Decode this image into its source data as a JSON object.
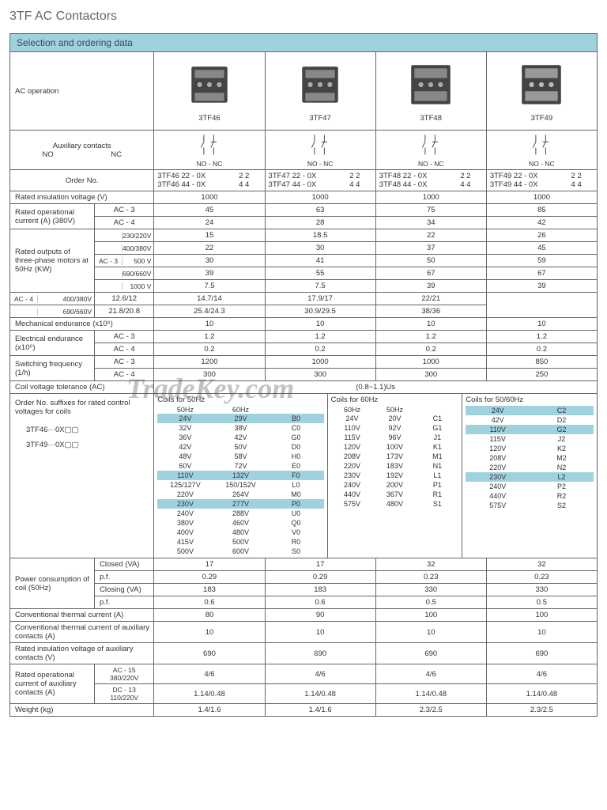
{
  "title": "3TF AC Contactors",
  "sectionHeader": "Selection and ordering data",
  "watermark": "TradeKey.com",
  "colors": {
    "accent": "#9fd2df",
    "border": "#666"
  },
  "products": [
    "3TF46",
    "3TF47",
    "3TF48",
    "3TF49"
  ],
  "rows": {
    "acOp": "AC operation",
    "auxContacts": "Auxiliary contacts",
    "aux_NO": "NO",
    "aux_NC": "NC",
    "nonc": "NO - NC",
    "orderNo": "Order No.",
    "orders": [
      [
        "3TF46 22 - 0X",
        "3TF46 44 - 0X",
        "2  2",
        "4  4"
      ],
      [
        "3TF47 22 - 0X",
        "3TF47 44 - 0X",
        "2  2",
        "4  4"
      ],
      [
        "3TF48 22 - 0X",
        "3TF48 44 - 0X",
        "2  2",
        "4  4"
      ],
      [
        "3TF49 22 - 0X",
        "3TF49 44 - 0X",
        "2  2",
        "4  4"
      ]
    ],
    "insV": "Rated insulation voltage (V)",
    "insV_vals": [
      "1000",
      "1000",
      "1000",
      "1000"
    ],
    "opCur": "Rated operational current (A) (380V)",
    "opCur_AC3": [
      "45",
      "63",
      "75",
      "85"
    ],
    "opCur_AC4": [
      "24",
      "28",
      "34",
      "42"
    ],
    "ratedOut": "Rated outputs of three-phase motors at 50Hz (KW)",
    "ro_volts_ac3": [
      "230/220V",
      "400/380V",
      "500    V",
      "690/660V",
      "1000   V"
    ],
    "ro_ac3": [
      [
        "15",
        "18.5",
        "22",
        "26"
      ],
      [
        "22",
        "30",
        "37",
        "45"
      ],
      [
        "30",
        "41",
        "50",
        "59"
      ],
      [
        "39",
        "55",
        "67",
        "67"
      ],
      [
        "7.5",
        "7.5",
        "39",
        "39"
      ]
    ],
    "ro_volts_ac4": [
      "400/380V",
      "690/660V"
    ],
    "ro_ac4": [
      [
        "12.6/12",
        "14.7/14",
        "17.9/17",
        "22/21"
      ],
      [
        "21.8/20.8",
        "25.4/24.3",
        "30.9/29.5",
        "38/36"
      ]
    ],
    "mechEnd": "Mechanical endurance (x10⁶)",
    "mechEnd_vals": [
      "10",
      "10",
      "10",
      "10"
    ],
    "elecEnd": "Electrical endurance (x10⁶)",
    "elecEnd_AC3": [
      "1.2",
      "1.2",
      "1.2",
      "1.2"
    ],
    "elecEnd_AC4": [
      "0.2",
      "0.2",
      "0.2",
      "0.2"
    ],
    "swFreq": "Switching frequency (1/h)",
    "swFreq_AC3": [
      "1200",
      "1000",
      "1000",
      "850"
    ],
    "swFreq_AC4": [
      "300",
      "300",
      "300",
      "250"
    ],
    "coilTol": "Coil voltage tolerance (AC)",
    "coilTol_val": "(0.8~1.1)Us",
    "coilSuffix": "Order No. suffixes for rated control voltages for coils",
    "coilSuffix_eg1": "3TF46···0X▢▢",
    "coilSuffix_eg2": "3TF49···0X▢▢",
    "coils50_title": "Coils for 50Hz",
    "coils50_sub": [
      "50Hz",
      "60Hz",
      ""
    ],
    "coils50": [
      [
        "24V",
        "29V",
        "B0",
        true
      ],
      [
        "32V",
        "38V",
        "C0",
        false
      ],
      [
        "36V",
        "42V",
        "G0",
        false
      ],
      [
        "42V",
        "50V",
        "D0",
        false
      ],
      [
        "48V",
        "58V",
        "H0",
        false
      ],
      [
        "60V",
        "72V",
        "E0",
        false
      ],
      [
        "110V",
        "132V",
        "F0",
        true
      ],
      [
        "125/127V",
        "150/152V",
        "L0",
        false
      ],
      [
        "220V",
        "264V",
        "M0",
        false
      ],
      [
        "230V",
        "277V",
        "P0",
        true
      ],
      [
        "240V",
        "288V",
        "U0",
        false
      ],
      [
        "380V",
        "460V",
        "Q0",
        false
      ],
      [
        "400V",
        "480V",
        "V0",
        false
      ],
      [
        "415V",
        "500V",
        "R0",
        false
      ],
      [
        "500V",
        "600V",
        "S0",
        false
      ]
    ],
    "coils60_title": "Coils for 60Hz",
    "coils60_sub": [
      "60Hz",
      "50Hz",
      ""
    ],
    "coils60": [
      [
        "24V",
        "20V",
        "C1",
        false
      ],
      [
        "110V",
        "92V",
        "G1",
        false
      ],
      [
        "115V",
        "96V",
        "J1",
        false
      ],
      [
        "120V",
        "100V",
        "K1",
        false
      ],
      [
        "208V",
        "173V",
        "M1",
        false
      ],
      [
        "220V",
        "183V",
        "N1",
        false
      ],
      [
        "230V",
        "192V",
        "L1",
        false
      ],
      [
        "240V",
        "200V",
        "P1",
        false
      ],
      [
        "440V",
        "367V",
        "R1",
        false
      ],
      [
        "575V",
        "480V",
        "S1",
        false
      ]
    ],
    "coils5060_title": "Coils for 50/60Hz",
    "coils5060_sub": [
      "",
      ""
    ],
    "coils5060": [
      [
        "24V",
        "C2",
        true
      ],
      [
        "42V",
        "D2",
        false
      ],
      [
        "110V",
        "G2",
        true
      ],
      [
        "115V",
        "J2",
        false
      ],
      [
        "120V",
        "K2",
        false
      ],
      [
        "208V",
        "M2",
        false
      ],
      [
        "220V",
        "N2",
        false
      ],
      [
        "230V",
        "L2",
        true
      ],
      [
        "240V",
        "P2",
        false
      ],
      [
        "440V",
        "R2",
        false
      ],
      [
        "575V",
        "S2",
        false
      ]
    ],
    "pwr": "Power consumption of coil (50Hz)",
    "pwr_closedVA": "Closed (VA)",
    "pwr_closedVA_v": [
      "17",
      "17",
      "32",
      "32"
    ],
    "pwr_pf1": "p.f.",
    "pwr_pf1_v": [
      "0.29",
      "0.29",
      "0.23",
      "0.23"
    ],
    "pwr_closingVA": "Closing (VA)",
    "pwr_closingVA_v": [
      "183",
      "183",
      "330",
      "330"
    ],
    "pwr_pf2": "p.f.",
    "pwr_pf2_v": [
      "0.6",
      "0.6",
      "0.5",
      "0.5"
    ],
    "convTh": "Conventional thermal current (A)",
    "convTh_v": [
      "80",
      "90",
      "100",
      "100"
    ],
    "convThAux": "Conventional thermal current of auxiliary contacts (A)",
    "convThAux_v": [
      "10",
      "10",
      "10",
      "10"
    ],
    "insVAux": "Rated insulation voltage of auxiliary contacts (V)",
    "insVAux_v": [
      "690",
      "690",
      "690",
      "690"
    ],
    "opCurAux": "Rated operational current of auxiliary contacts (A)",
    "opCurAux_AC15": "AC - 15 380/220V",
    "opCurAux_AC15_v": [
      "4/6",
      "4/6",
      "4/6",
      "4/6"
    ],
    "opCurAux_DC13": "DC - 13 110/220V",
    "opCurAux_DC13_v": [
      "1.14/0.48",
      "1.14/0.48",
      "1.14/0.48",
      "1.14/0.48"
    ],
    "weight": "Weight (kg)",
    "weight_v": [
      "1.4/1.6",
      "1.4/1.6",
      "2.3/2.5",
      "2.3/2.5"
    ]
  }
}
